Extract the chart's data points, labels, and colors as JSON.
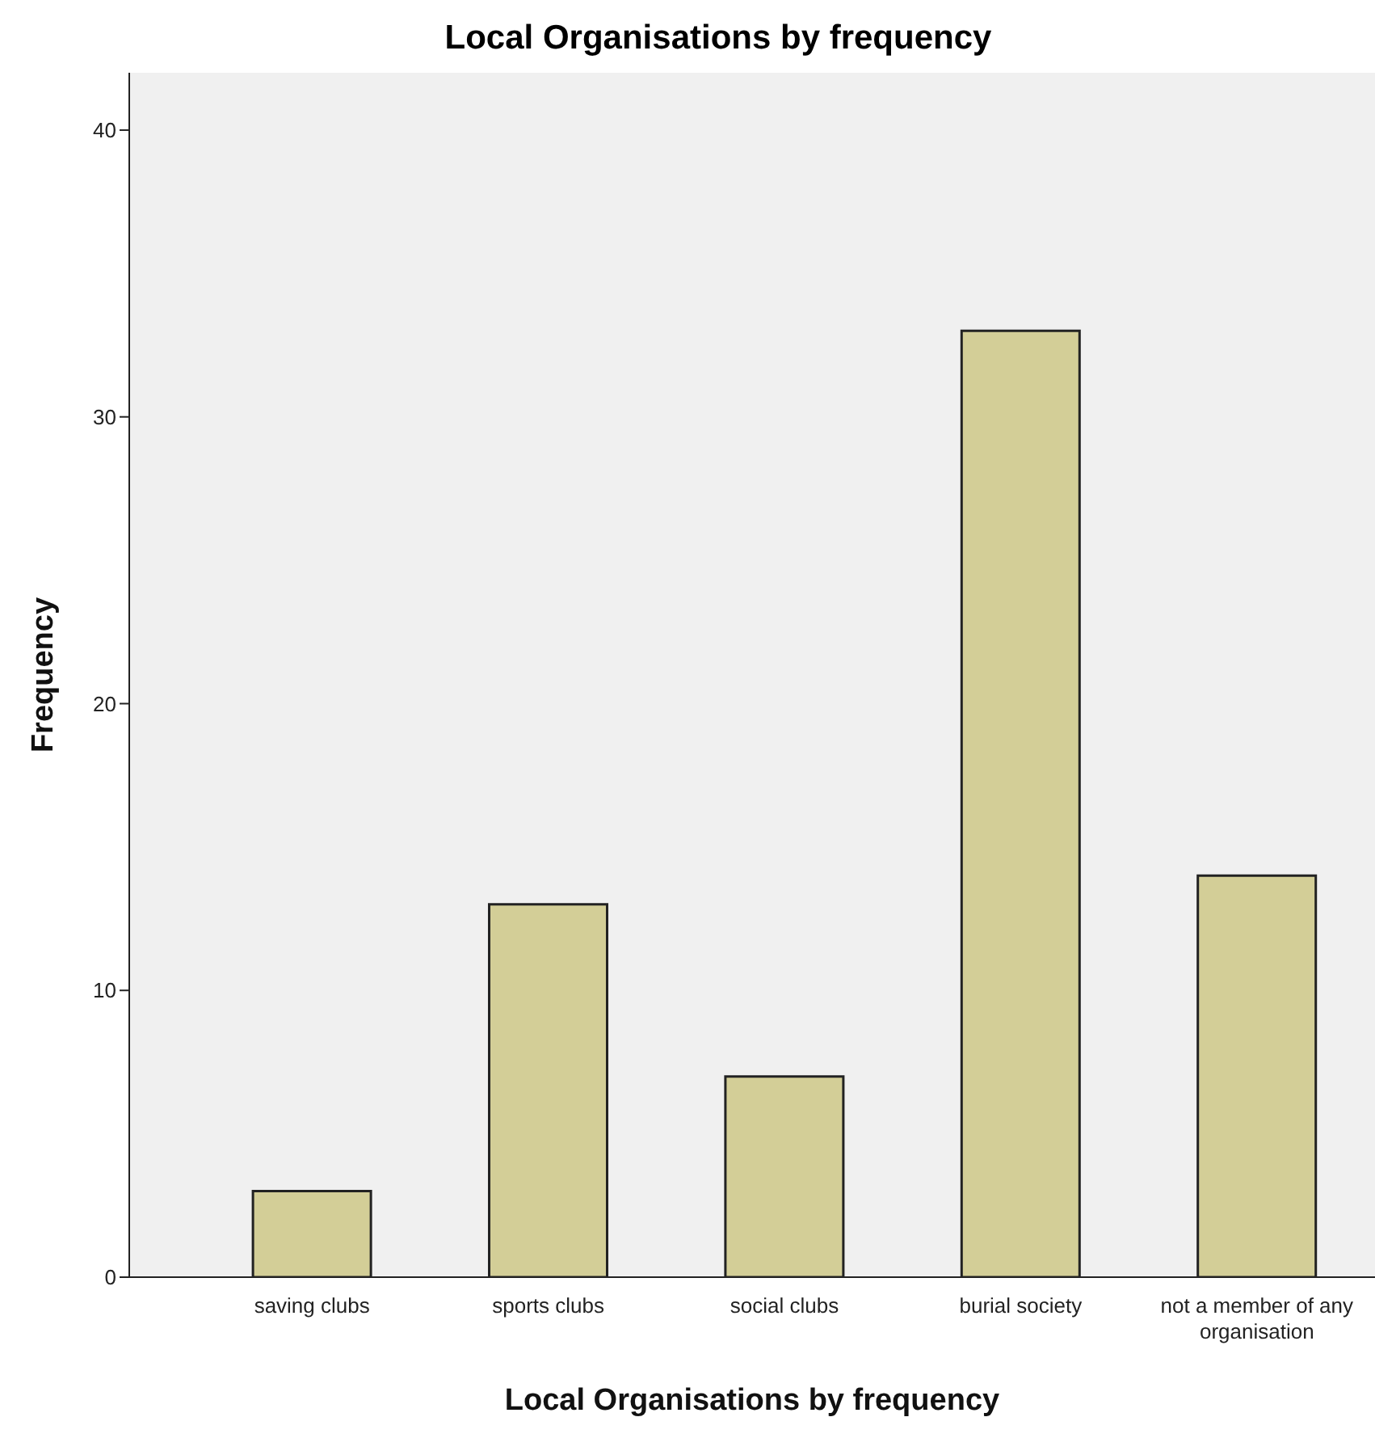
{
  "chart_data": {
    "type": "bar",
    "title": "Local Organisations  by frequency",
    "xlabel": "Local Organisations by frequency",
    "ylabel": "Frequency",
    "categories": [
      "saving clubs",
      "sports clubs",
      "social clubs",
      "burial society",
      "not a member of any organisation"
    ],
    "values": [
      3,
      13,
      7,
      33,
      14
    ],
    "color": "#d3ce97",
    "ylim": [
      0,
      42
    ],
    "yticks": [
      0,
      10,
      20,
      30,
      40
    ],
    "grid": false,
    "legend": false
  }
}
